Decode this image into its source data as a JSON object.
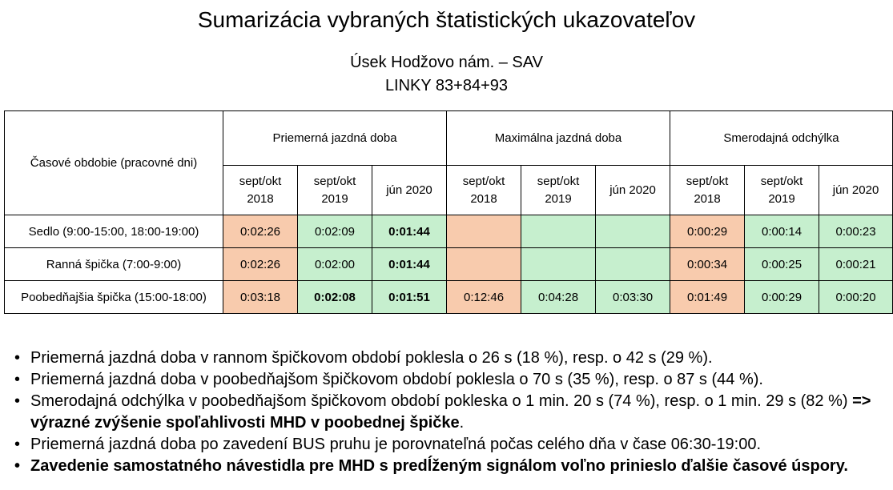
{
  "title": "Sumarizácia vybraných štatistických ukazovateľov",
  "subtitle1": "Úsek Hodžovo nám. – SAV",
  "subtitle2": "LINKY 83+84+93",
  "table": {
    "corner": "Časové obdobie (pracovné dni)",
    "groups": [
      "Priemerná jazdná doba",
      "Maximálna jazdná doba",
      "Smerodajná odchýlka"
    ],
    "periods": [
      {
        "line1": "sept/okt",
        "line2": "2018"
      },
      {
        "line1": "sept/okt",
        "line2": "2019"
      },
      {
        "line1": "jún 2020",
        "line2": ""
      }
    ],
    "rows": [
      {
        "label": "Sedlo (9:00-15:00, 18:00-19:00)",
        "cells": [
          "0:02:26",
          "0:02:09",
          "0:01:44",
          "",
          "",
          "",
          "0:00:29",
          "0:00:14",
          "0:00:23"
        ]
      },
      {
        "label": "Ranná špička (7:00-9:00)",
        "cells": [
          "0:02:26",
          "0:02:00",
          "0:01:44",
          "",
          "",
          "",
          "0:00:34",
          "0:00:25",
          "0:00:21"
        ]
      },
      {
        "label": "Poobedňajšia špička (15:00-18:00)",
        "cells": [
          "0:03:18",
          "0:02:08",
          "0:01:51",
          "0:12:46",
          "0:04:28",
          "0:03:30",
          "0:01:49",
          "0:00:29",
          "0:00:20"
        ]
      }
    ]
  },
  "colors": {
    "orange": "#f8cbad",
    "green": "#c6efce"
  },
  "bullets": {
    "b1": "Priemerná jazdná doba v rannom špičkovom období poklesla o 26 s (18 %), resp. o 42 s (29 %).",
    "b2": "Priemerná jazdná doba v poobedňajšom špičkovom období poklesla o 70 s (35 %), resp. o 87 s (44 %).",
    "b3_text": "Smerodajná odchýlka v poobedňajšom špičkovom období pokleska  o 1 min. 20 s (74 %), resp. o 1 min. 29 s (82 %) ",
    "b3_bold": "=> výrazné zvýšenie spoľahlivosti MHD v poobednej špičke",
    "b3_end": ".",
    "b4": "Priemerná jazdná doba po zavedení BUS pruhu je porovnateľná počas celého dňa v čase 06:30-19:00.",
    "b5": "Zavedenie samostatného návestidla pre MHD s predĺženým signálom voľno prinieslo ďalšie časové úspory."
  },
  "bullet_char": "•"
}
